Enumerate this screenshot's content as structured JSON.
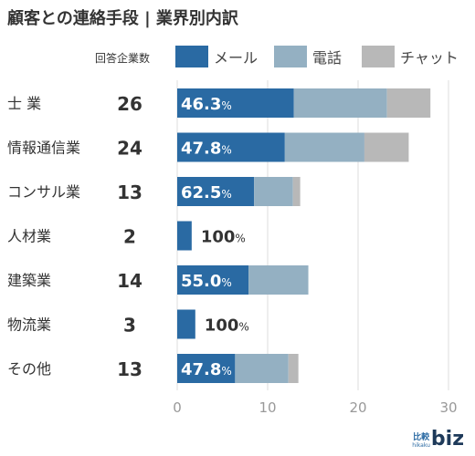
{
  "title": "顧客との連絡手段 | 業界別内訳",
  "count_header": "回答企業数",
  "colors": {
    "mail": "#2a6aa3",
    "phone": "#94b0c2",
    "chat": "#b8b8b8"
  },
  "logo": {
    "top": "比較",
    "sub": "hikaku",
    "main": "biz"
  },
  "chart_data": {
    "type": "bar",
    "orientation": "horizontal",
    "stacked": true,
    "title": "顧客との連絡手段 | 業界別内訳",
    "categories": [
      "士 業",
      "情報通信業",
      "コンサル業",
      "人材業",
      "建築業",
      "物流業",
      "その他"
    ],
    "counts": [
      26,
      24,
      13,
      2,
      14,
      3,
      13
    ],
    "percent_labels": [
      {
        "number": "46.3",
        "unit": "%"
      },
      {
        "number": "47.8",
        "unit": "%"
      },
      {
        "number": "62.5",
        "unit": "%"
      },
      {
        "number": "100",
        "unit": "%"
      },
      {
        "number": "55.0",
        "unit": "%"
      },
      {
        "number": "100",
        "unit": "%"
      },
      {
        "number": "47.8",
        "unit": "%"
      }
    ],
    "series": [
      {
        "name": "メール",
        "values": [
          12.9,
          11.9,
          8.5,
          1.6,
          7.9,
          2.0,
          6.4
        ]
      },
      {
        "name": "電話",
        "values": [
          10.3,
          8.8,
          4.3,
          0,
          6.6,
          0,
          5.9
        ]
      },
      {
        "name": "チャット",
        "values": [
          4.8,
          4.9,
          0.8,
          0,
          0,
          0,
          1.1
        ]
      }
    ],
    "xlim": [
      0,
      30
    ],
    "xticks": [
      "0",
      "10",
      "20",
      "30"
    ],
    "grid": true,
    "legend_position": "top"
  }
}
